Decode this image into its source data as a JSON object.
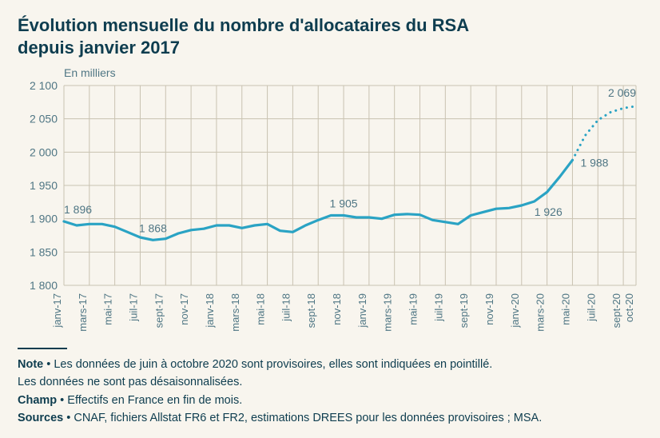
{
  "title_line1": "Évolution mensuelle du nombre d'allocataires du RSA",
  "title_line2": "depuis janvier 2017",
  "title_fontsize": 22,
  "subtitle": "En milliers",
  "chart": {
    "type": "line",
    "background_color": "#f8f5ee",
    "grid_color": "#c9c2b1",
    "line_color": "#2aa3c4",
    "line_width_solid": 3.2,
    "line_width_dotted": 3,
    "dot_spacing": 2,
    "ylim": [
      1800,
      2100
    ],
    "ytick_step": 50,
    "yticks": [
      1800,
      1850,
      1900,
      1950,
      2000,
      2050,
      2100
    ],
    "x_labels": [
      "janv-17",
      "mars-17",
      "mai-17",
      "juil-17",
      "sept-17",
      "nov-17",
      "janv-18",
      "mars-18",
      "mai-18",
      "juil-18",
      "sept-18",
      "nov-18",
      "janv-19",
      "mars-19",
      "mai-19",
      "juil-19",
      "sept-19",
      "nov-19",
      "janv-20",
      "mars-20",
      "mai-20",
      "juil-20",
      "sept-20",
      "oct-20"
    ],
    "x_index": [
      0,
      2,
      4,
      6,
      8,
      10,
      12,
      14,
      16,
      18,
      20,
      22,
      24,
      26,
      28,
      30,
      32,
      34,
      36,
      38,
      40,
      42,
      44,
      45
    ],
    "values_solid": [
      1896,
      1890,
      1892,
      1892,
      1888,
      1880,
      1872,
      1868,
      1870,
      1878,
      1883,
      1885,
      1890,
      1890,
      1886,
      1890,
      1892,
      1882,
      1880,
      1890,
      1898,
      1905,
      1905,
      1902,
      1902,
      1900,
      1906,
      1907,
      1906,
      1898,
      1895,
      1892,
      1905,
      1910,
      1915,
      1916,
      1920,
      1926,
      1940,
      1963,
      1988
    ],
    "values_dotted_start_index": 40,
    "values_dotted": [
      1988,
      2025,
      2048,
      2060,
      2066,
      2069
    ],
    "n_points": 46,
    "annotations": [
      {
        "text": "1 896",
        "i": 0,
        "dy": -10,
        "anchor": "start"
      },
      {
        "text": "1 868",
        "i": 7,
        "dy": -10,
        "anchor": "middle"
      },
      {
        "text": "1 905",
        "i": 22,
        "dy": -10,
        "anchor": "middle"
      },
      {
        "text": "1 926",
        "i": 37,
        "dy": 18,
        "anchor": "start"
      },
      {
        "text": "1 988",
        "i": 40,
        "dy": 8,
        "anchor": "start",
        "dx": 10
      },
      {
        "text": "2 069",
        "i": 45,
        "dy": -12,
        "anchor": "end"
      }
    ]
  },
  "notes": {
    "note_label": "Note",
    "note_text1": " • Les données de juin à octobre 2020 sont provisoires, elles sont indiquées en pointillé.",
    "note_text2": "Les données ne sont pas désaisonnalisées.",
    "champ_label": "Champ",
    "champ_text": " • Effectifs en France en fin de mois.",
    "sources_label": "Sources",
    "sources_text": " • CNAF, fichiers Allstat FR6 et FR2, estimations DREES pour les données provisoires ; MSA."
  }
}
